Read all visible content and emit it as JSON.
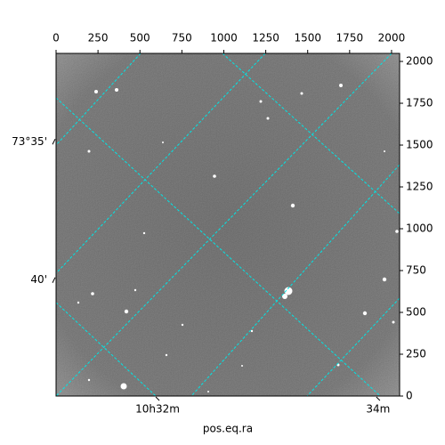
{
  "chart_data": {
    "type": "image",
    "xlabel": "pos.eq.ra",
    "xlim": [
      0,
      2048
    ],
    "ylim": [
      0,
      2048
    ],
    "xticks": [
      0,
      250,
      500,
      750,
      1000,
      1250,
      1500,
      1750,
      2000
    ],
    "yticks": [
      0,
      250,
      500,
      750,
      1000,
      1250,
      1500,
      1750,
      2000
    ],
    "ra_ticks": [
      {
        "value": 605,
        "label": "10h32m"
      },
      {
        "value": 1920,
        "label": "34m"
      }
    ],
    "dec_ticks": [
      {
        "value": 1520,
        "label": "73°35'"
      },
      {
        "value": 693,
        "label": "40'"
      }
    ],
    "grid_color": "#00e5e5"
  }
}
